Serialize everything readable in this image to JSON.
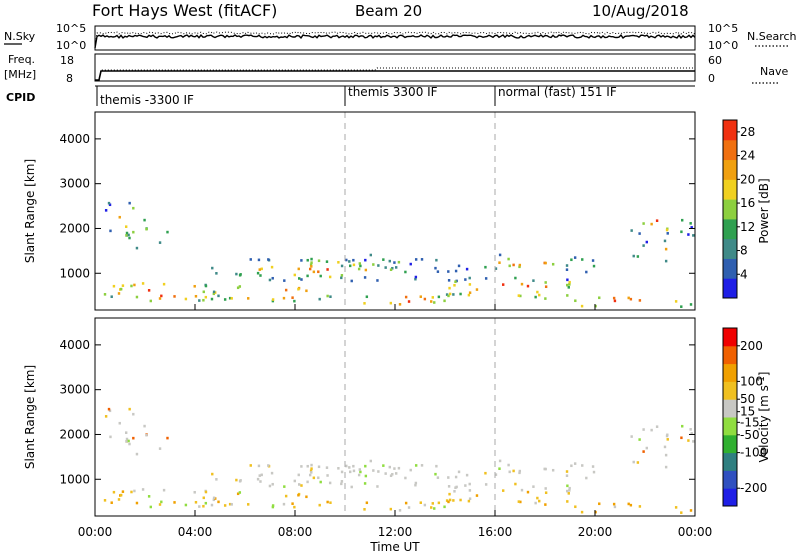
{
  "header": {
    "station": "Fort Hays West (fitACF)",
    "beam": "Beam 20",
    "date": "10/Aug/2018"
  },
  "strips": {
    "nsky_label": "N.Sky",
    "nsearch_label": "N.Search",
    "freq_label_line1": "Freq.",
    "freq_label_line2": "[MHz]",
    "nave_label": "Nave",
    "cpid_label": "CPID",
    "noise_left_ticks": [
      "10^5",
      "10^0"
    ],
    "noise_right_ticks": [
      "10^5",
      "10^0"
    ],
    "freq_left_ticks": [
      "18",
      "8"
    ],
    "nave_right_ticks": [
      "60",
      "0"
    ]
  },
  "cpid_segments": [
    {
      "label": "themis -3300 IF",
      "start_hour": 0
    },
    {
      "label": "themis 3300 IF",
      "start_hour": 10
    },
    {
      "label": "normal (fast) 151 IF",
      "start_hour": 16
    }
  ],
  "colors": {
    "power_scale": [
      "#1f1fe6",
      "#2f5fb0",
      "#3f8a88",
      "#2fa050",
      "#8ccf3f",
      "#f0d020",
      "#f0a010",
      "#f07010",
      "#f03010"
    ],
    "velocity_scale": [
      "#1f1fe6",
      "#3050c0",
      "#2f7f80",
      "#30b030",
      "#90dd40",
      "#c8c8c4",
      "#f0c020",
      "#f0a000",
      "#f06000",
      "#f00000"
    ]
  },
  "chart_data": [
    {
      "type": "heatmap",
      "title": "Fort Hays West (fitACF)",
      "xlabel": "Time UT",
      "ylabel": "Slant Range [km]",
      "x_ticks": [
        "00:00",
        "04:00",
        "08:00",
        "12:00",
        "16:00",
        "20:00",
        "00:00"
      ],
      "xlim_hours": [
        0,
        24
      ],
      "y_ticks": [
        1000,
        2000,
        3000,
        4000
      ],
      "ylim_km": [
        180,
        4600
      ],
      "colorbar_label": "Power [dB]",
      "colorbar_ticks": [
        4,
        8,
        12,
        16,
        20,
        24,
        28
      ],
      "colorbar_range": [
        0,
        30
      ]
    },
    {
      "type": "heatmap",
      "xlabel": "Time UT",
      "ylabel": "Slant Range [km]",
      "x_ticks": [
        "00:00",
        "04:00",
        "08:00",
        "12:00",
        "16:00",
        "20:00",
        "00:00"
      ],
      "xlim_hours": [
        0,
        24
      ],
      "y_ticks": [
        1000,
        2000,
        3000,
        4000
      ],
      "ylim_km": [
        180,
        4600
      ],
      "colorbar_label": "Velocity [m s^-1]",
      "colorbar_ticks": [
        -200,
        -100,
        -50,
        -15,
        15,
        50,
        100,
        200
      ],
      "colorbar_range": [
        -250,
        250
      ]
    }
  ]
}
